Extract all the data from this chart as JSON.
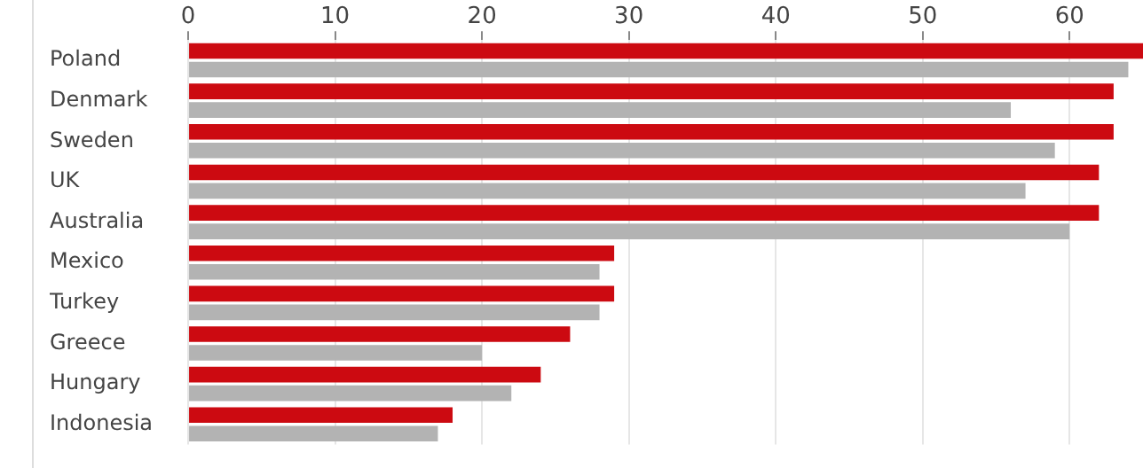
{
  "chart_data": {
    "type": "bar",
    "orientation": "horizontal",
    "categories": [
      "Poland",
      "Denmark",
      "Sweden",
      "UK",
      "Australia",
      "Mexico",
      "Turkey",
      "Greece",
      "Hungary",
      "Indonesia"
    ],
    "series": [
      {
        "color": "#cc0a11",
        "values": [
          65,
          63,
          63,
          62,
          62,
          29,
          29,
          26,
          24,
          18
        ]
      },
      {
        "color": "#b3b3b3",
        "values": [
          64,
          56,
          59,
          57,
          60,
          28,
          28,
          20,
          22,
          17
        ]
      }
    ],
    "xlim": [
      0,
      65
    ],
    "xticks": [
      0,
      10,
      20,
      30,
      40,
      50,
      60
    ],
    "grid": "x",
    "legend": false
  }
}
